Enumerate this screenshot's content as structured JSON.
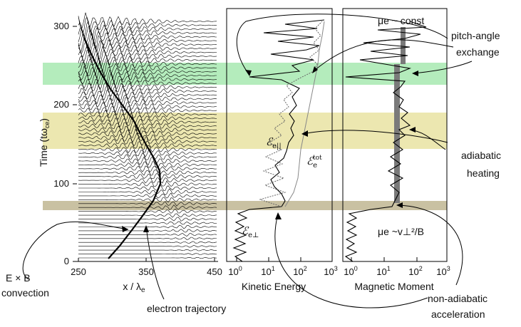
{
  "panel1": {
    "xlabel": "x / λ",
    "xlabel_sub": "e",
    "ylabel": "Time",
    "ylabel_unit": "(tω",
    "ylabel_unit_sub": "ce",
    "ylabel_unit_close": ")",
    "xticks": [
      "250",
      "350",
      "450"
    ],
    "yticks": [
      "0",
      "100",
      "200",
      "300"
    ]
  },
  "panel2": {
    "xlabel": "Kinetic Energy",
    "xticks": [
      {
        "base": "10",
        "exp": "0"
      },
      {
        "base": "10",
        "exp": "1"
      },
      {
        "base": "10",
        "exp": "2"
      },
      {
        "base": "10",
        "exp": "3"
      }
    ],
    "label_epar": "e||",
    "label_eperp": "e⊥",
    "label_etot_sub": "e",
    "label_etot_sup": "tot",
    "symbol": "ℰ"
  },
  "panel3": {
    "xlabel": "Magnetic Moment",
    "xticks": [
      {
        "base": "10",
        "exp": "0"
      },
      {
        "base": "10",
        "exp": "1"
      },
      {
        "base": "10",
        "exp": "2"
      },
      {
        "base": "10",
        "exp": "3"
      }
    ],
    "mu_const": "μe ~ const",
    "mu_formula": "μe ~v⊥²/B"
  },
  "annotations": {
    "exb_line1": "E × B",
    "exb_line2": "convection",
    "electron_trajectory": "electron trajectory",
    "pitch_line1": "pitch-angle",
    "pitch_line2": "exchange",
    "adiabatic_line1": "adiabatic",
    "adiabatic_line2": "heating",
    "nonadiabatic_line1": "non-adiabatic",
    "nonadiabatic_line2": "acceleration"
  },
  "colors": {
    "band_green": "#b4ecbc",
    "band_yellow": "#ece7b0",
    "band_tan": "#c9c1a2",
    "mu_bar": "#7a7a7a",
    "ink": "#111111"
  }
}
